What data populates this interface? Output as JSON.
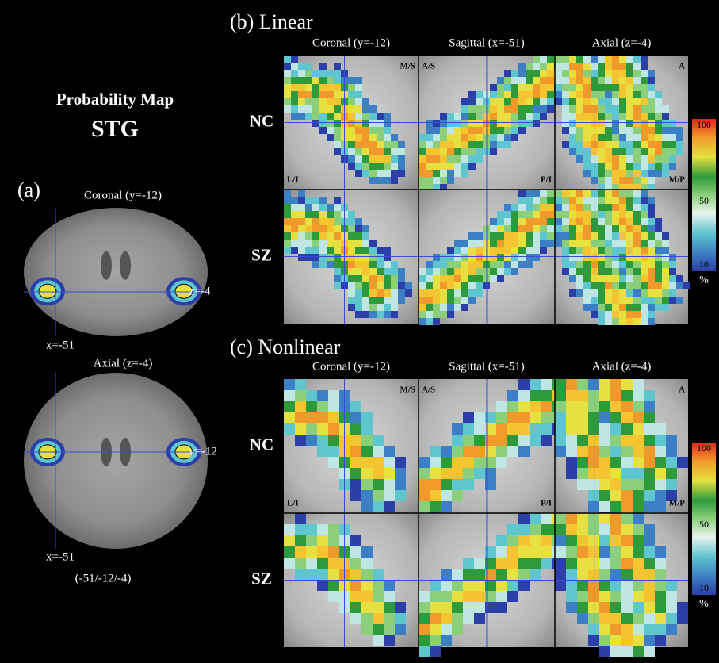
{
  "title": {
    "line1": "Probability Map",
    "line2": "STG"
  },
  "panel_a": {
    "label": "(a)",
    "coronal": {
      "title": "Coronal (y=-12)",
      "z_label": "z=-4",
      "x_label": "x=-51"
    },
    "axial": {
      "title": "Axial (z=-4)",
      "y_label": "y=-12",
      "x_label": "x=-51"
    },
    "coords": "(-51/-12/-4)"
  },
  "panel_b": {
    "label": "(b) Linear",
    "views": [
      "Coronal (y=-12)",
      "Sagittal (x=-51)",
      "Axial (z=-4)"
    ],
    "rows": [
      "NC",
      "SZ"
    ],
    "corners": {
      "coronal_tr": "M/S",
      "coronal_bl": "L/I",
      "sagittal_tl": "A/S",
      "sagittal_br": "P/I",
      "axial_tr": "A",
      "axial_br": "M/P"
    },
    "colorbar": {
      "top": "100",
      "mid": "50",
      "bottom": "10",
      "unit": "%"
    }
  },
  "panel_c": {
    "label": "(c) Nonlinear",
    "views": [
      "Coronal (y=-12)",
      "Sagittal (x=-51)",
      "Axial (z=-4)"
    ],
    "rows": [
      "NC",
      "SZ"
    ],
    "corners": {
      "coronal_tr": "M/S",
      "coronal_bl": "L/I",
      "sagittal_tl": "A/S",
      "sagittal_br": "P/I",
      "axial_tr": "A",
      "axial_br": "M/P"
    },
    "colorbar": {
      "top": "100",
      "mid": "50",
      "bottom": "10",
      "unit": "%"
    }
  }
}
